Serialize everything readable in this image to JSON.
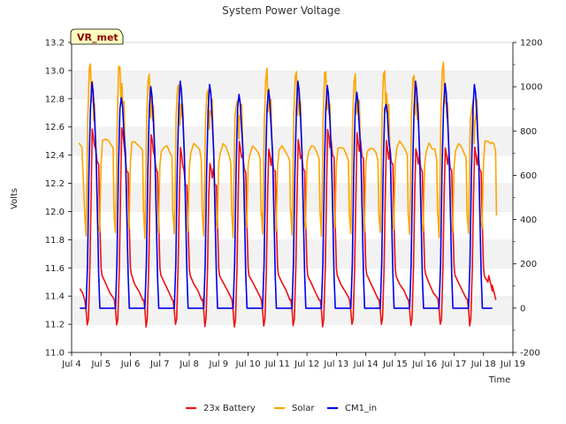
{
  "chart_data": {
    "type": "line",
    "title": "System Power Voltage",
    "xlabel": "Time",
    "ylabel": "Volts",
    "badge": "VR_met",
    "x_tick_labels": [
      "Jul 4",
      "Jul 5",
      "Jul 6",
      "Jul 7",
      "Jul 8",
      "Jul 9",
      "Jul 10",
      "Jul 11",
      "Jul 12",
      "Jul 13",
      "Jul 14",
      "Jul 15",
      "Jul 16",
      "Jul 17",
      "Jul 18",
      "Jul 19"
    ],
    "xlim": [
      4,
      19
    ],
    "ylim_left": [
      11.0,
      13.2
    ],
    "y_ticks_left": [
      "11.0",
      "11.2",
      "11.4",
      "11.6",
      "11.8",
      "12.0",
      "12.2",
      "12.4",
      "12.6",
      "12.8",
      "13.0",
      "13.2"
    ],
    "ylim_right": [
      -200,
      1200
    ],
    "y_ticks_right": [
      "-200",
      "0",
      "200",
      "400",
      "600",
      "800",
      "1000",
      "1200"
    ],
    "grid": "horizontal alternating bands",
    "legend_position": "bottom-center",
    "day_starts": [
      4.45,
      5.45,
      6.45,
      7.45,
      8.45,
      9.45,
      10.45,
      11.45,
      12.45,
      13.45,
      14.45,
      15.45,
      16.45,
      17.45
    ],
    "series": [
      {
        "name": "23x Battery",
        "color": "#ee1111",
        "axis": "left",
        "night_start": 11.45,
        "night_end": 11.37,
        "dip_min": 11.19,
        "day_peaks": [
          12.58,
          12.6,
          12.55,
          12.45,
          12.35,
          12.5,
          12.45,
          12.5,
          12.58,
          12.55,
          12.5,
          12.45,
          12.45,
          12.45
        ],
        "afternoon_values": [
          12.35,
          12.3,
          12.3,
          12.2,
          12.2,
          12.3,
          12.3,
          12.3,
          12.4,
          12.4,
          12.35,
          12.3,
          12.3,
          12.3
        ]
      },
      {
        "name": "Solar",
        "color": "#ffa500",
        "axis": "right",
        "plateau": [
          750,
          740,
          720,
          715,
          710,
          700,
          705,
          715,
          715,
          710,
          720,
          715,
          720,
          740
        ],
        "noon_peaks": [
          1100,
          1100,
          1050,
          1010,
          985,
          940,
          1075,
          1065,
          1075,
          1050,
          1065,
          1055,
          1100,
          930
        ]
      },
      {
        "name": "CM1_in",
        "color": "#0000ee",
        "axis": "right",
        "night_value": 0,
        "peaks": [
          1020,
          950,
          1000,
          1025,
          1010,
          965,
          985,
          1025,
          1005,
          975,
          920,
          1025,
          1015,
          1010
        ]
      }
    ]
  }
}
